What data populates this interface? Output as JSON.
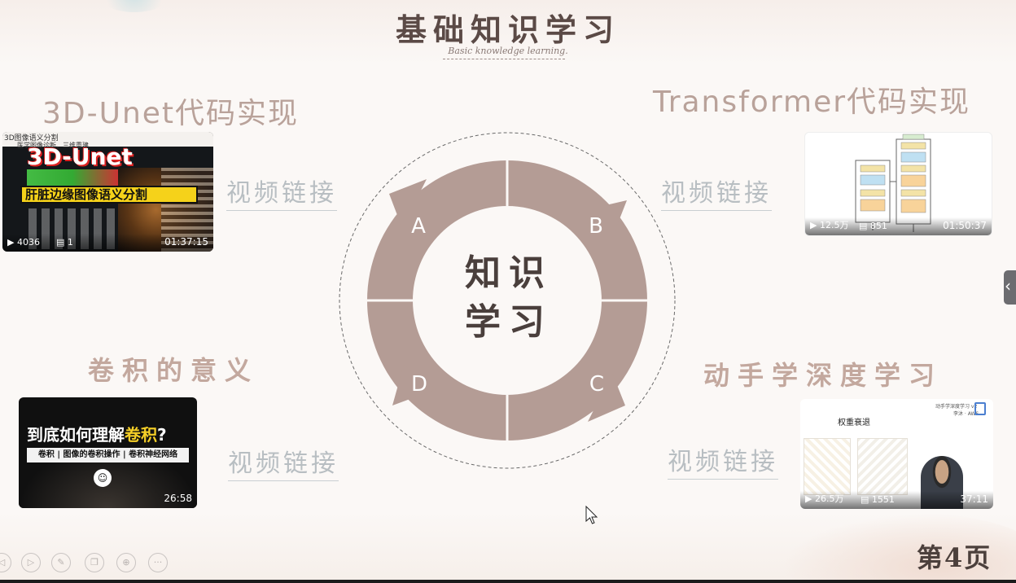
{
  "header": {
    "title": "基础知识学习",
    "subtitle": "Basic knowledge learning."
  },
  "sections": {
    "top_left_title": "3D-Unet代码实现",
    "top_right_title": "Transformer代码实现",
    "bottom_left_title": "卷积的意义",
    "bottom_right_title": "动手学深度学习"
  },
  "links": {
    "top_left": "视频链接",
    "top_right": "视频链接",
    "bottom_left": "视频链接",
    "bottom_right": "视频链接"
  },
  "videos": {
    "unet": {
      "tag": "3D图像语义分割",
      "small": "医学图像诊断、三维重建",
      "title": "3D-Unet",
      "caption": "肝脏边缘图像语义分割",
      "views": "4036",
      "comments": "1",
      "duration": "01:37:15"
    },
    "transformer": {
      "views": "12.5万",
      "comments": "851",
      "duration": "01:50:37"
    },
    "conv": {
      "title_plain": "到底如何理解",
      "title_highlight": "卷积",
      "title_q": "?",
      "subtitle": "卷积 | 图像的卷积操作 | 卷积神经网络",
      "duration": "26:58"
    },
    "d2l": {
      "header": "动手学深度学习 v2",
      "author": "李沐 · AWS",
      "slide_title": "权重衰退",
      "views": "26.5万",
      "comments": "1551",
      "duration": "37:11"
    }
  },
  "diagram": {
    "labels": [
      "A",
      "B",
      "C",
      "D"
    ],
    "center_line1": "知识",
    "center_line2": "学习",
    "ring_color": "#b49c95"
  },
  "footer": {
    "page_label": "第4页"
  },
  "icons": {
    "side_tab": "chevron-left-icon",
    "controls": [
      "prev-icon",
      "play-icon",
      "pen-icon",
      "copy-icon",
      "zoom-icon",
      "more-icon"
    ]
  }
}
